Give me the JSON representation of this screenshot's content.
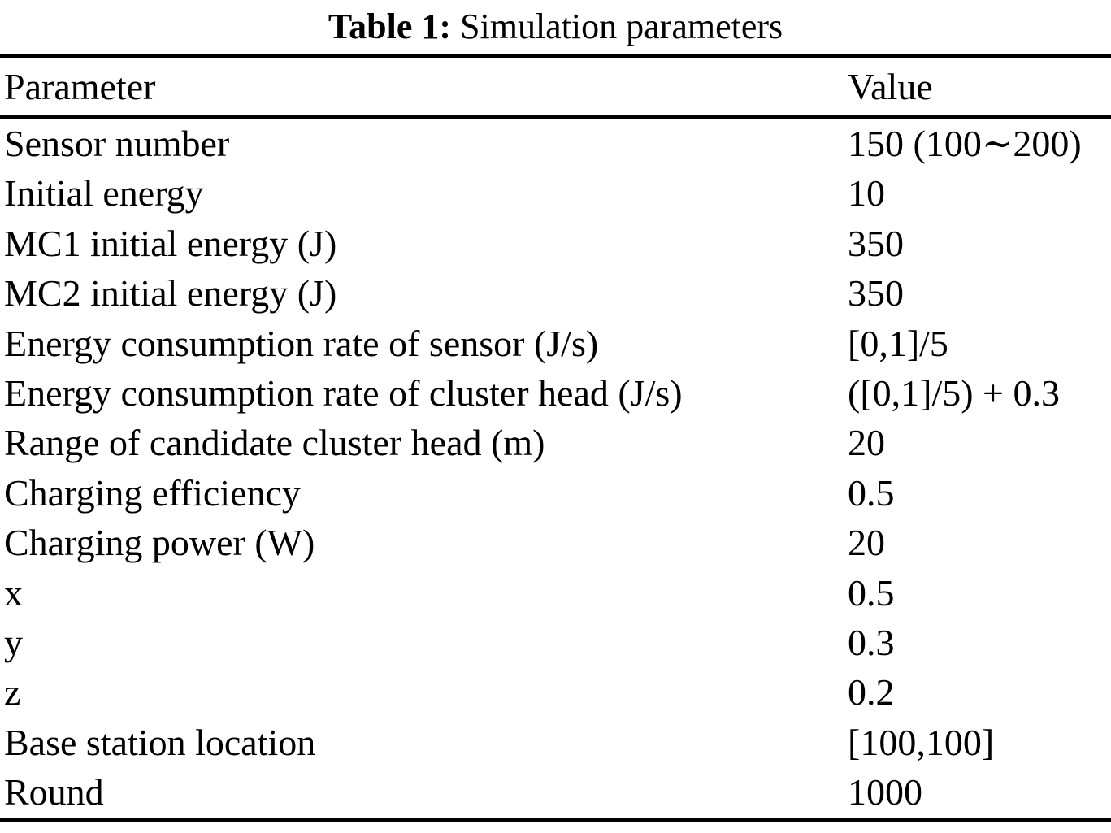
{
  "colors": {
    "text": "#000000",
    "background": "#ffffff",
    "rule": "#000000"
  },
  "table": {
    "caption": {
      "label": "Table 1:",
      "text": "Simulation parameters"
    },
    "columns": [
      "Parameter",
      "Value"
    ],
    "rows": [
      {
        "parameter": "Sensor number",
        "value": "150 (100∼200)"
      },
      {
        "parameter": "Initial energy",
        "value": "10"
      },
      {
        "parameter": "MC1 initial energy (J)",
        "value": "350"
      },
      {
        "parameter": "MC2 initial energy (J)",
        "value": "350"
      },
      {
        "parameter": "Energy consumption rate of sensor (J/s)",
        "value": "[0,1]/5"
      },
      {
        "parameter": "Energy consumption rate of cluster head (J/s)",
        "value": "([0,1]/5) + 0.3"
      },
      {
        "parameter": "Range of candidate cluster head (m)",
        "value": "20"
      },
      {
        "parameter": "Charging efficiency",
        "value": "0.5"
      },
      {
        "parameter": "Charging power (W)",
        "value": "20"
      },
      {
        "parameter": "x",
        "value": "0.5"
      },
      {
        "parameter": "y",
        "value": "0.3"
      },
      {
        "parameter": "z",
        "value": "0.2"
      },
      {
        "parameter": "Base station location",
        "value": "[100,100]"
      },
      {
        "parameter": "Round",
        "value": "1000"
      }
    ]
  }
}
